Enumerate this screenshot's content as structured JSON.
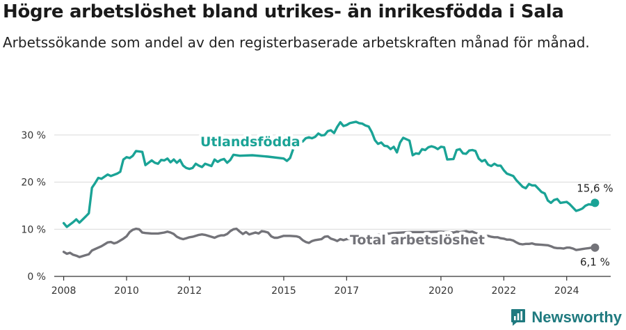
{
  "title": "Högre arbetslöshet bland utrikes- än inrikesfödda i Sala",
  "subtitle": "Arbetssökande som andel av den registerbaserade arbetskraften månad för månad.",
  "brand": {
    "name": "Newsworthy",
    "logo_icon": "newsworthy-chart-icon",
    "color": "#1f7a7f"
  },
  "colors": {
    "utlandsfodda": "#1aa396",
    "total": "#737379",
    "grid": "#d9d9d9",
    "axis": "#333333"
  },
  "chart_data": {
    "type": "line",
    "x_unit": "year",
    "y_unit": "%",
    "ylim": [
      0,
      35
    ],
    "xlim": [
      2007.7,
      2025.4
    ],
    "y_ticks": [
      0,
      10,
      20,
      30
    ],
    "y_tick_labels": [
      "0 %",
      "10 %",
      "20 %",
      "30 %"
    ],
    "x_ticks": [
      2008,
      2010,
      2012,
      2015,
      2017,
      2020,
      2022,
      2024
    ],
    "x_tick_labels": [
      "2008",
      "2010",
      "2012",
      "2015",
      "2017",
      "2020",
      "2022",
      "2024"
    ],
    "grid": true,
    "series": [
      {
        "name": "Utlandsfödda",
        "color": "#1aa396",
        "end_label": "15,6 %",
        "points": [
          [
            2008.0,
            11.3
          ],
          [
            2008.1,
            10.5
          ],
          [
            2008.3,
            11.5
          ],
          [
            2008.4,
            12.1
          ],
          [
            2008.5,
            11.4
          ],
          [
            2008.7,
            12.7
          ],
          [
            2008.8,
            13.4
          ],
          [
            2008.9,
            18.8
          ],
          [
            2009.0,
            19.8
          ],
          [
            2009.1,
            20.9
          ],
          [
            2009.2,
            20.7
          ],
          [
            2009.4,
            21.6
          ],
          [
            2009.5,
            21.3
          ],
          [
            2009.7,
            21.8
          ],
          [
            2009.8,
            22.2
          ],
          [
            2009.9,
            24.8
          ],
          [
            2010.0,
            25.3
          ],
          [
            2010.1,
            25.1
          ],
          [
            2010.2,
            25.6
          ],
          [
            2010.3,
            26.6
          ],
          [
            2010.5,
            26.4
          ],
          [
            2010.6,
            23.6
          ],
          [
            2010.8,
            24.6
          ],
          [
            2010.9,
            24.1
          ],
          [
            2011.0,
            23.9
          ],
          [
            2011.1,
            24.7
          ],
          [
            2011.2,
            24.6
          ],
          [
            2011.3,
            25.0
          ],
          [
            2011.4,
            24.2
          ],
          [
            2011.5,
            24.8
          ],
          [
            2011.6,
            24.1
          ],
          [
            2011.7,
            24.7
          ],
          [
            2011.8,
            23.5
          ],
          [
            2011.9,
            23.0
          ],
          [
            2012.0,
            22.8
          ],
          [
            2012.1,
            23.0
          ],
          [
            2012.2,
            23.9
          ],
          [
            2012.3,
            23.5
          ],
          [
            2012.4,
            23.2
          ],
          [
            2012.5,
            23.9
          ],
          [
            2012.7,
            23.4
          ],
          [
            2012.8,
            24.8
          ],
          [
            2012.9,
            24.3
          ],
          [
            2013.0,
            24.7
          ],
          [
            2013.1,
            24.9
          ],
          [
            2013.2,
            24.1
          ],
          [
            2013.3,
            24.7
          ],
          [
            2013.4,
            25.8
          ],
          [
            2013.6,
            25.6
          ],
          [
            2014.0,
            25.7
          ],
          [
            2014.5,
            25.4
          ],
          [
            2015.0,
            25.0
          ],
          [
            2015.1,
            24.5
          ],
          [
            2015.2,
            25.1
          ],
          [
            2015.3,
            27.0
          ],
          [
            2015.4,
            28.5
          ],
          [
            2015.6,
            28.6
          ],
          [
            2015.7,
            29.3
          ],
          [
            2015.8,
            29.5
          ],
          [
            2015.9,
            29.3
          ],
          [
            2016.0,
            29.6
          ],
          [
            2016.1,
            30.3
          ],
          [
            2016.2,
            29.9
          ],
          [
            2016.3,
            30.0
          ],
          [
            2016.4,
            30.8
          ],
          [
            2016.5,
            31.0
          ],
          [
            2016.6,
            30.4
          ],
          [
            2016.7,
            31.7
          ],
          [
            2016.8,
            32.7
          ],
          [
            2016.9,
            31.9
          ],
          [
            2017.0,
            32.1
          ],
          [
            2017.1,
            32.5
          ],
          [
            2017.3,
            32.8
          ],
          [
            2017.4,
            32.5
          ],
          [
            2017.5,
            32.4
          ],
          [
            2017.6,
            32.0
          ],
          [
            2017.7,
            31.8
          ],
          [
            2017.8,
            30.6
          ],
          [
            2017.9,
            28.9
          ],
          [
            2018.0,
            28.1
          ],
          [
            2018.1,
            28.4
          ],
          [
            2018.2,
            27.7
          ],
          [
            2018.3,
            27.6
          ],
          [
            2018.4,
            27.0
          ],
          [
            2018.5,
            27.5
          ],
          [
            2018.6,
            26.3
          ],
          [
            2018.7,
            28.4
          ],
          [
            2018.8,
            29.4
          ],
          [
            2019.0,
            28.8
          ],
          [
            2019.1,
            25.7
          ],
          [
            2019.2,
            26.1
          ],
          [
            2019.3,
            26.0
          ],
          [
            2019.4,
            27.0
          ],
          [
            2019.5,
            26.8
          ],
          [
            2019.6,
            27.4
          ],
          [
            2019.7,
            27.6
          ],
          [
            2019.8,
            27.4
          ],
          [
            2019.9,
            27.0
          ],
          [
            2020.0,
            27.5
          ],
          [
            2020.1,
            27.4
          ],
          [
            2020.2,
            24.8
          ],
          [
            2020.4,
            24.9
          ],
          [
            2020.5,
            26.8
          ],
          [
            2020.6,
            27.0
          ],
          [
            2020.7,
            26.1
          ],
          [
            2020.8,
            26.0
          ],
          [
            2020.9,
            26.7
          ],
          [
            2021.0,
            26.8
          ],
          [
            2021.1,
            26.6
          ],
          [
            2021.2,
            25.0
          ],
          [
            2021.3,
            24.4
          ],
          [
            2021.4,
            24.7
          ],
          [
            2021.5,
            23.7
          ],
          [
            2021.6,
            23.4
          ],
          [
            2021.7,
            23.9
          ],
          [
            2021.8,
            23.5
          ],
          [
            2021.9,
            23.5
          ],
          [
            2022.0,
            22.5
          ],
          [
            2022.1,
            21.8
          ],
          [
            2022.3,
            21.3
          ],
          [
            2022.4,
            20.4
          ],
          [
            2022.5,
            19.7
          ],
          [
            2022.6,
            19.0
          ],
          [
            2022.7,
            18.7
          ],
          [
            2022.8,
            19.6
          ],
          [
            2022.9,
            19.3
          ],
          [
            2023.0,
            19.3
          ],
          [
            2023.2,
            17.9
          ],
          [
            2023.3,
            17.6
          ],
          [
            2023.4,
            16.1
          ],
          [
            2023.5,
            15.6
          ],
          [
            2023.6,
            16.2
          ],
          [
            2023.7,
            16.4
          ],
          [
            2023.8,
            15.6
          ],
          [
            2024.0,
            15.8
          ],
          [
            2024.1,
            15.3
          ],
          [
            2024.3,
            13.9
          ],
          [
            2024.4,
            14.1
          ],
          [
            2024.5,
            14.4
          ],
          [
            2024.6,
            15.0
          ],
          [
            2024.7,
            15.3
          ],
          [
            2024.8,
            15.2
          ],
          [
            2024.9,
            15.6
          ]
        ]
      },
      {
        "name": "Total arbetslöshet",
        "color": "#737379",
        "end_label": "6,1 %",
        "points": [
          [
            2008.0,
            5.2
          ],
          [
            2008.1,
            4.8
          ],
          [
            2008.2,
            5.0
          ],
          [
            2008.3,
            4.6
          ],
          [
            2008.4,
            4.4
          ],
          [
            2008.5,
            4.1
          ],
          [
            2008.7,
            4.5
          ],
          [
            2008.8,
            4.7
          ],
          [
            2008.9,
            5.5
          ],
          [
            2009.0,
            5.8
          ],
          [
            2009.2,
            6.4
          ],
          [
            2009.3,
            6.8
          ],
          [
            2009.4,
            7.2
          ],
          [
            2009.5,
            7.3
          ],
          [
            2009.6,
            7.0
          ],
          [
            2009.7,
            7.2
          ],
          [
            2009.8,
            7.6
          ],
          [
            2009.9,
            8.0
          ],
          [
            2010.0,
            8.5
          ],
          [
            2010.1,
            9.4
          ],
          [
            2010.2,
            9.9
          ],
          [
            2010.3,
            10.1
          ],
          [
            2010.4,
            10.0
          ],
          [
            2010.5,
            9.3
          ],
          [
            2010.6,
            9.2
          ],
          [
            2010.8,
            9.1
          ],
          [
            2011.0,
            9.1
          ],
          [
            2011.2,
            9.3
          ],
          [
            2011.3,
            9.5
          ],
          [
            2011.4,
            9.3
          ],
          [
            2011.5,
            9.0
          ],
          [
            2011.6,
            8.4
          ],
          [
            2011.7,
            8.1
          ],
          [
            2011.8,
            7.9
          ],
          [
            2011.9,
            8.1
          ],
          [
            2012.0,
            8.3
          ],
          [
            2012.1,
            8.4
          ],
          [
            2012.2,
            8.6
          ],
          [
            2012.3,
            8.8
          ],
          [
            2012.4,
            8.9
          ],
          [
            2012.5,
            8.8
          ],
          [
            2012.6,
            8.6
          ],
          [
            2012.7,
            8.4
          ],
          [
            2012.8,
            8.2
          ],
          [
            2012.9,
            8.5
          ],
          [
            2013.0,
            8.7
          ],
          [
            2013.1,
            8.7
          ],
          [
            2013.2,
            9.0
          ],
          [
            2013.3,
            9.6
          ],
          [
            2013.4,
            10.0
          ],
          [
            2013.5,
            10.1
          ],
          [
            2013.6,
            9.5
          ],
          [
            2013.7,
            9.0
          ],
          [
            2013.8,
            9.4
          ],
          [
            2013.9,
            8.9
          ],
          [
            2014.0,
            9.1
          ],
          [
            2014.1,
            9.3
          ],
          [
            2014.2,
            9.1
          ],
          [
            2014.3,
            9.6
          ],
          [
            2014.4,
            9.5
          ],
          [
            2014.5,
            9.3
          ],
          [
            2014.6,
            8.5
          ],
          [
            2014.7,
            8.2
          ],
          [
            2014.8,
            8.2
          ],
          [
            2014.9,
            8.4
          ],
          [
            2015.0,
            8.6
          ],
          [
            2015.2,
            8.6
          ],
          [
            2015.4,
            8.5
          ],
          [
            2015.5,
            8.3
          ],
          [
            2015.6,
            7.7
          ],
          [
            2015.7,
            7.3
          ],
          [
            2015.8,
            7.1
          ],
          [
            2015.9,
            7.5
          ],
          [
            2016.0,
            7.7
          ],
          [
            2016.1,
            7.8
          ],
          [
            2016.2,
            7.9
          ],
          [
            2016.3,
            8.4
          ],
          [
            2016.4,
            8.5
          ],
          [
            2016.5,
            8.0
          ],
          [
            2016.6,
            7.8
          ],
          [
            2016.7,
            7.5
          ],
          [
            2016.8,
            7.9
          ],
          [
            2016.9,
            7.7
          ],
          [
            2017.0,
            7.9
          ],
          [
            2017.2,
            8.0
          ],
          [
            2017.5,
            8.3
          ],
          [
            2018.0,
            8.8
          ],
          [
            2018.5,
            9.2
          ],
          [
            2019.0,
            9.4
          ],
          [
            2019.5,
            9.4
          ],
          [
            2020.0,
            9.5
          ],
          [
            2020.2,
            9.4
          ],
          [
            2020.4,
            9.3
          ],
          [
            2020.5,
            9.5
          ],
          [
            2020.6,
            9.4
          ],
          [
            2020.7,
            9.5
          ],
          [
            2020.8,
            9.6
          ],
          [
            2020.9,
            9.4
          ],
          [
            2021.0,
            9.5
          ],
          [
            2021.1,
            9.2
          ],
          [
            2021.2,
            9.0
          ],
          [
            2021.3,
            8.7
          ],
          [
            2021.4,
            8.6
          ],
          [
            2021.5,
            8.6
          ],
          [
            2021.6,
            8.4
          ],
          [
            2021.7,
            8.3
          ],
          [
            2021.8,
            8.3
          ],
          [
            2021.9,
            8.1
          ],
          [
            2022.0,
            8.0
          ],
          [
            2022.1,
            7.8
          ],
          [
            2022.2,
            7.8
          ],
          [
            2022.3,
            7.6
          ],
          [
            2022.4,
            7.2
          ],
          [
            2022.5,
            6.9
          ],
          [
            2022.6,
            6.8
          ],
          [
            2022.7,
            6.9
          ],
          [
            2022.8,
            6.9
          ],
          [
            2022.9,
            7.0
          ],
          [
            2023.0,
            6.8
          ],
          [
            2023.2,
            6.7
          ],
          [
            2023.4,
            6.6
          ],
          [
            2023.5,
            6.4
          ],
          [
            2023.6,
            6.1
          ],
          [
            2023.7,
            6.0
          ],
          [
            2023.8,
            6.0
          ],
          [
            2023.9,
            5.9
          ],
          [
            2024.0,
            6.1
          ],
          [
            2024.1,
            6.1
          ],
          [
            2024.2,
            5.9
          ],
          [
            2024.3,
            5.6
          ],
          [
            2024.4,
            5.7
          ],
          [
            2024.5,
            5.8
          ],
          [
            2024.6,
            5.9
          ],
          [
            2024.7,
            6.0
          ],
          [
            2024.8,
            6.1
          ],
          [
            2024.9,
            6.1
          ]
        ]
      }
    ]
  }
}
